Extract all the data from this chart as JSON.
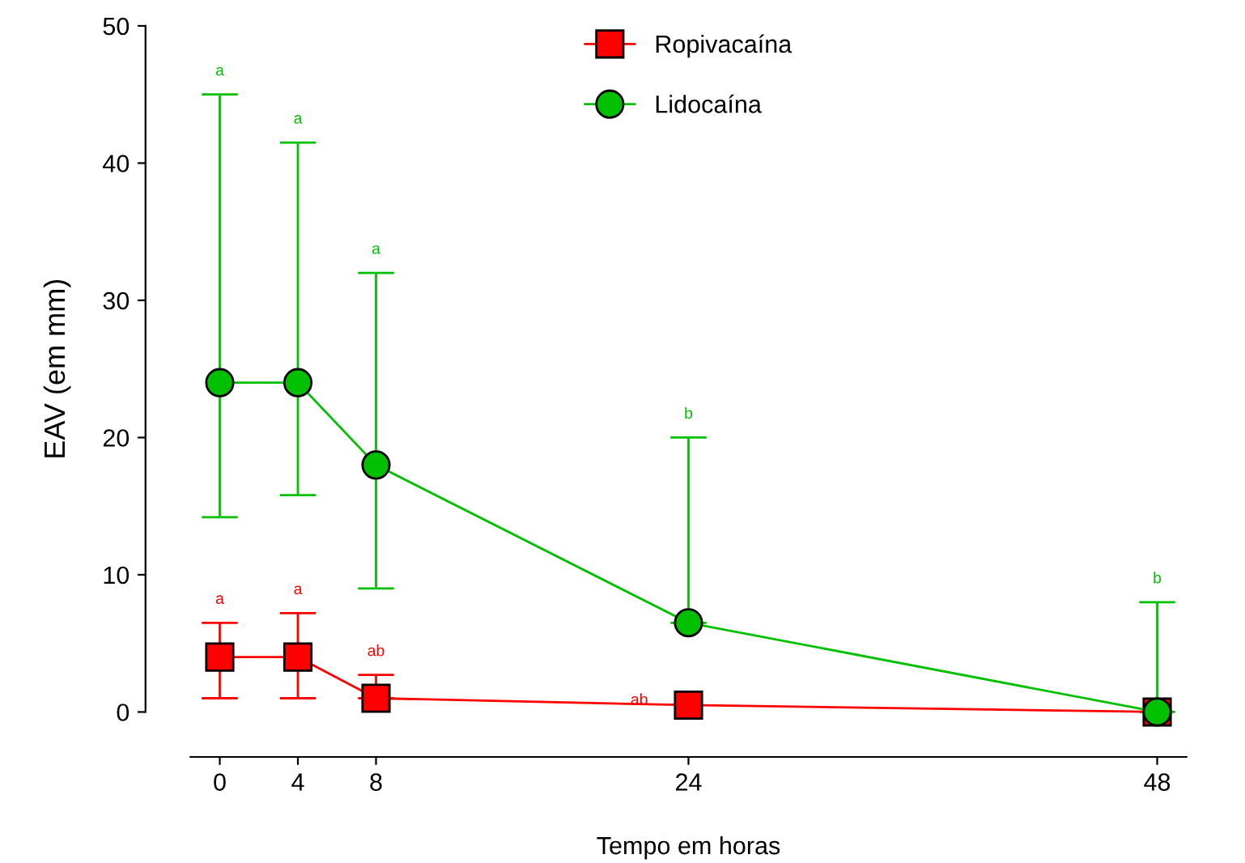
{
  "chart_data": {
    "type": "line",
    "xlabel": "Tempo em horas",
    "ylabel": "EAV (em mm)",
    "x": [
      0,
      4,
      8,
      24,
      48
    ],
    "series": [
      {
        "name": "Ropivacaína",
        "color": "#ff0000",
        "marker": "square",
        "values": [
          4,
          4,
          1,
          0.5,
          0
        ],
        "errors": [
          [
            1,
            6.5
          ],
          [
            1,
            7.2
          ],
          [
            1,
            2.7
          ],
          null,
          null
        ]
      },
      {
        "name": "Lidocaína",
        "color": "#00c000",
        "marker": "circle",
        "values": [
          24,
          24,
          18,
          6.5,
          0
        ],
        "errors": [
          [
            14.2,
            45
          ],
          [
            15.8,
            41.5
          ],
          [
            9,
            32
          ],
          [
            6.5,
            20
          ],
          [
            0,
            8
          ]
        ]
      }
    ],
    "annotations": [
      {
        "text": "a",
        "x": 0,
        "y": 45
      },
      {
        "text": "a",
        "x": 4,
        "y": 41.5
      },
      {
        "text": "a",
        "x": 8,
        "y": 32
      },
      {
        "text": "b",
        "x": 24,
        "y": 20
      },
      {
        "text": "b",
        "x": 48,
        "y": 8
      },
      {
        "text": "a",
        "x": 0,
        "y": 6.5
      },
      {
        "text": "a",
        "x": 4,
        "y": 7.2
      },
      {
        "text": "ab",
        "x": 8,
        "y": 2.7
      },
      {
        "text": "ab",
        "x": 24,
        "y": 0.5
      }
    ],
    "xlim": [
      -1.5,
      49.5
    ],
    "ylim": [
      0,
      50
    ],
    "xticks": [
      0,
      4,
      8,
      24,
      48
    ],
    "yticks": [
      0,
      10,
      20,
      30,
      40,
      50
    ],
    "legend": "top",
    "grid": false,
    "line_style": "solid"
  }
}
